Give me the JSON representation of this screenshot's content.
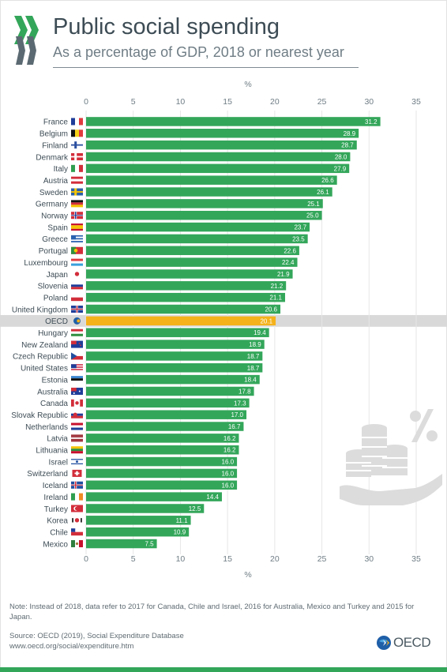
{
  "header": {
    "title": "Public social spending",
    "subtitle": "As a percentage of GDP, 2018 or nearest year"
  },
  "chart_data": {
    "type": "bar",
    "orientation": "horizontal",
    "title": "Public social spending",
    "subtitle": "As a percentage of GDP, 2018 or nearest year",
    "xlabel": "%",
    "xlim": [
      0,
      35
    ],
    "xticks": [
      0,
      5,
      10,
      15,
      20,
      25,
      30,
      35
    ],
    "grid": true,
    "categories": [
      "France",
      "Belgium",
      "Finland",
      "Denmark",
      "Italy",
      "Austria",
      "Sweden",
      "Germany",
      "Norway",
      "Spain",
      "Greece",
      "Portugal",
      "Luxembourg",
      "Japan",
      "Slovenia",
      "Poland",
      "United Kingdom",
      "OECD",
      "Hungary",
      "New Zealand",
      "Czech Republic",
      "United States",
      "Estonia",
      "Australia",
      "Canada",
      "Slovak Republic",
      "Netherlands",
      "Latvia",
      "Lithuania",
      "Israel",
      "Switzerland",
      "Iceland",
      "Ireland",
      "Turkey",
      "Korea",
      "Chile",
      "Mexico"
    ],
    "values": [
      31.2,
      28.9,
      28.7,
      28.0,
      27.9,
      26.6,
      26.1,
      25.1,
      25.0,
      23.7,
      23.5,
      22.6,
      22.4,
      21.9,
      21.2,
      21.1,
      20.6,
      20.1,
      19.4,
      18.9,
      18.7,
      18.7,
      18.4,
      17.8,
      17.3,
      17.0,
      16.7,
      16.2,
      16.2,
      16.0,
      16.0,
      16.0,
      14.4,
      12.5,
      11.1,
      10.9,
      7.5
    ],
    "value_labels": [
      "31.2",
      "28.9",
      "28.7",
      "28.0",
      "27.9",
      "26.6",
      "26.1",
      "25.1",
      "25.0",
      "23.7",
      "23.5",
      "22.6",
      "22.4",
      "21.9",
      "21.2",
      "21.1",
      "20.6",
      "20.1",
      "19.4",
      "18.9",
      "18.7",
      "18.7",
      "18.4",
      "17.8",
      "17.3",
      "17.0",
      "16.7",
      "16.2",
      "16.2",
      "16.0",
      "16.0",
      "16.0",
      "14.4",
      "12.5",
      "11.1",
      "10.9",
      "7.5"
    ],
    "highlight": "OECD",
    "colors": {
      "bar": "#33a65a",
      "highlight": "#f5b21b",
      "highlight_row": "#d9d9d9",
      "grid": "#e6e6e6"
    },
    "flags": [
      "france",
      "belgium",
      "finland",
      "denmark",
      "italy",
      "austria",
      "sweden",
      "germany",
      "norway",
      "spain",
      "greece",
      "portugal",
      "luxembourg",
      "japan",
      "slovenia",
      "poland",
      "united-kingdom",
      "oecd",
      "hungary",
      "new-zealand",
      "czech-republic",
      "united-states",
      "estonia",
      "australia",
      "canada",
      "slovak-republic",
      "netherlands",
      "latvia",
      "lithuania",
      "israel",
      "switzerland",
      "iceland",
      "ireland",
      "turkey",
      "korea",
      "chile",
      "mexico"
    ]
  },
  "note": "Note: Instead of 2018, data refer to 2017 for Canada, Chile and Israel, 2016 for Australia, Mexico and Turkey and 2015 for Japan.",
  "source": {
    "line1": "Source: OECD (2019), Social Expenditure Database",
    "line2": "www.oecd.org/social/expenditure.htm"
  },
  "brand": {
    "logo_text": "OECD",
    "accent": "#33a65a",
    "title_color": "#3d4c55"
  },
  "icons": [
    "oecd-chevrons-logo",
    "coins-hand-percent-illustration",
    "oecd-globe-logo"
  ]
}
